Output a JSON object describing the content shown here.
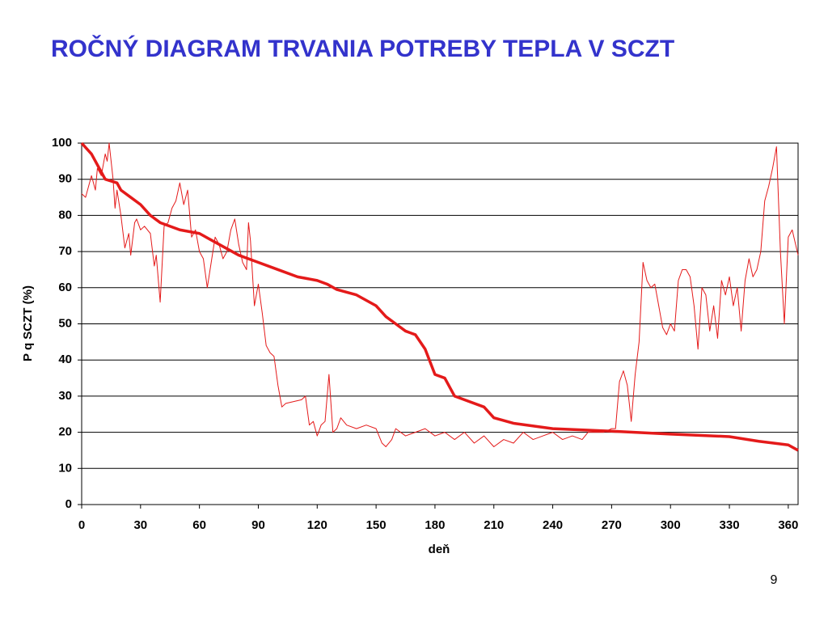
{
  "chart_data": {
    "type": "line",
    "title": "ROČNÝ DIAGRAM TRVANIA POTREBY TEPLA V SCZT",
    "xlabel": "deň",
    "ylabel": "P q SCZT (%)",
    "xlim": [
      0,
      365
    ],
    "ylim": [
      0,
      100
    ],
    "xticks": [
      0,
      30,
      60,
      90,
      120,
      150,
      180,
      210,
      240,
      270,
      300,
      330,
      360
    ],
    "yticks": [
      0,
      10,
      20,
      30,
      40,
      50,
      60,
      70,
      80,
      90,
      100
    ],
    "grid": true,
    "series": [
      {
        "color": "#e41a1a",
        "x": [
          0,
          2,
          5,
          7,
          8,
          10,
          12,
          13,
          14,
          16,
          17,
          18,
          20,
          22,
          24,
          25,
          27,
          28,
          30,
          32,
          35,
          37,
          38,
          40,
          42,
          44,
          46,
          48,
          50,
          52,
          54,
          56,
          58,
          60,
          62,
          64,
          66,
          68,
          70,
          72,
          74,
          76,
          78,
          80,
          82,
          84,
          85,
          86,
          88,
          90,
          92,
          94,
          96,
          98,
          100,
          102,
          104,
          108,
          112,
          114,
          116,
          118,
          120,
          122,
          124,
          126,
          128,
          130,
          132,
          135,
          140,
          145,
          150,
          153,
          155,
          158,
          160,
          165,
          170,
          175,
          180,
          185,
          190,
          195,
          200,
          205,
          210,
          215,
          220,
          225,
          230,
          235,
          240,
          245,
          250,
          255,
          258,
          262,
          266,
          270,
          272,
          274,
          276,
          278,
          280,
          282,
          284,
          286,
          288,
          290,
          292,
          294,
          296,
          298,
          300,
          302,
          304,
          306,
          308,
          310,
          312,
          314,
          316,
          318,
          320,
          322,
          324,
          326,
          328,
          330,
          332,
          334,
          336,
          338,
          340,
          342,
          344,
          346,
          348,
          350,
          352,
          354,
          356,
          358,
          360,
          362,
          365
        ],
        "values": [
          86,
          85,
          91,
          87,
          93,
          91,
          97,
          95,
          100,
          90,
          82,
          87,
          80,
          71,
          75,
          69,
          78,
          79,
          76,
          77,
          75,
          66,
          69,
          56,
          77,
          78,
          82,
          84,
          89,
          83,
          87,
          74,
          76,
          70,
          68,
          60,
          67,
          74,
          72,
          68,
          70,
          76,
          79,
          72,
          67,
          65,
          78,
          73,
          55,
          61,
          53,
          44,
          42,
          41,
          33,
          27,
          28,
          28.5,
          29,
          30,
          22,
          23,
          19,
          22,
          23,
          36,
          20,
          21,
          24,
          22,
          21,
          22,
          21,
          17,
          16,
          18,
          21,
          19,
          20,
          21,
          19,
          20,
          18,
          20,
          17,
          19,
          16,
          18,
          17,
          20,
          18,
          19,
          20,
          18,
          19,
          18,
          20,
          20,
          20,
          21,
          21,
          34,
          37,
          33,
          23,
          36,
          45,
          67,
          62,
          60,
          61,
          55,
          49,
          47,
          50,
          48,
          62,
          65,
          65,
          63,
          55,
          43,
          60,
          58,
          48,
          55,
          46,
          62,
          58,
          63,
          55,
          60,
          48,
          62,
          68,
          63,
          65,
          70,
          84,
          88,
          93,
          99,
          70,
          50,
          74,
          76,
          69
        ]
      },
      {
        "color": "#e41a1a",
        "x": [
          0,
          5,
          10,
          12,
          18,
          20,
          25,
          30,
          35,
          40,
          50,
          60,
          70,
          80,
          90,
          100,
          110,
          120,
          125,
          130,
          140,
          150,
          155,
          160,
          165,
          170,
          175,
          180,
          185,
          190,
          195,
          205,
          210,
          220,
          240,
          270,
          300,
          330,
          345,
          360,
          365
        ],
        "values": [
          100,
          97,
          92,
          90,
          89,
          87,
          85,
          83,
          80,
          78,
          76,
          75,
          72,
          69,
          67,
          65,
          63,
          62,
          61,
          59.5,
          58,
          55,
          52,
          50,
          48,
          47,
          43,
          36,
          35,
          30,
          29,
          27,
          24,
          22.5,
          21,
          20.3,
          19.5,
          18.8,
          17.5,
          16.5,
          15
        ]
      }
    ]
  },
  "page_number": "9"
}
